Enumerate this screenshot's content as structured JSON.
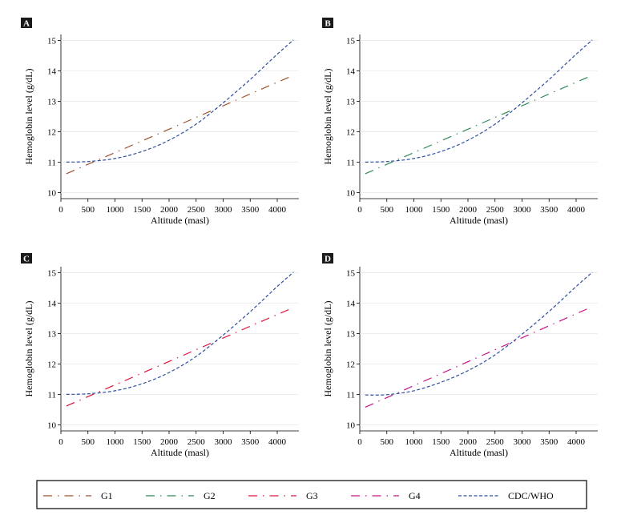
{
  "chart_data": [
    {
      "type": "line",
      "panel_label": "A",
      "xlabel": "Altitude (masl)",
      "ylabel": "Hemoglobin level (g/dL)",
      "xlim": [
        0,
        4400
      ],
      "ylim": [
        9.8,
        15.2
      ],
      "xticks": [
        0,
        500,
        1000,
        1500,
        2000,
        2500,
        3000,
        3500,
        4000
      ],
      "yticks": [
        10,
        11,
        12,
        13,
        14,
        15
      ],
      "series": [
        {
          "name": "G1",
          "color": "#a0522d",
          "style": "long-dash-dot",
          "x": [
            100,
            4250
          ],
          "y": [
            10.62,
            13.82
          ]
        },
        {
          "name": "CDC/WHO",
          "color": "#2f4f9f",
          "style": "short-dash",
          "x": [
            100,
            500,
            1000,
            1500,
            2000,
            2500,
            3000,
            3500,
            4000,
            4300
          ],
          "y": [
            11.0,
            11.02,
            11.12,
            11.35,
            11.72,
            12.25,
            12.95,
            13.72,
            14.55,
            15.02
          ]
        }
      ]
    },
    {
      "type": "line",
      "panel_label": "B",
      "xlabel": "Altitude (masl)",
      "ylabel": "Hemoglobin level (g/dL)",
      "xlim": [
        0,
        4400
      ],
      "ylim": [
        9.8,
        15.2
      ],
      "xticks": [
        0,
        500,
        1000,
        1500,
        2000,
        2500,
        3000,
        3500,
        4000
      ],
      "yticks": [
        10,
        11,
        12,
        13,
        14,
        15
      ],
      "series": [
        {
          "name": "G2",
          "color": "#2e8b57",
          "style": "long-dash-dot",
          "x": [
            100,
            4250
          ],
          "y": [
            10.62,
            13.82
          ]
        },
        {
          "name": "CDC/WHO",
          "color": "#2f4f9f",
          "style": "short-dash",
          "x": [
            100,
            500,
            1000,
            1500,
            2000,
            2500,
            3000,
            3500,
            4000,
            4300
          ],
          "y": [
            11.0,
            11.02,
            11.12,
            11.35,
            11.72,
            12.25,
            12.95,
            13.72,
            14.55,
            15.02
          ]
        }
      ]
    },
    {
      "type": "line",
      "panel_label": "C",
      "xlabel": "Altitude (masl)",
      "ylabel": "Hemoglobin level (g/dL)",
      "xlim": [
        0,
        4400
      ],
      "ylim": [
        9.8,
        15.2
      ],
      "xticks": [
        0,
        500,
        1000,
        1500,
        2000,
        2500,
        3000,
        3500,
        4000
      ],
      "yticks": [
        10,
        11,
        12,
        13,
        14,
        15
      ],
      "series": [
        {
          "name": "G3",
          "color": "#dc143c",
          "style": "long-dash-dot",
          "x": [
            100,
            4250
          ],
          "y": [
            10.62,
            13.82
          ]
        },
        {
          "name": "CDC/WHO",
          "color": "#2f4f9f",
          "style": "short-dash",
          "x": [
            100,
            500,
            1000,
            1500,
            2000,
            2500,
            3000,
            3500,
            4000,
            4300
          ],
          "y": [
            11.0,
            11.02,
            11.12,
            11.35,
            11.72,
            12.25,
            12.95,
            13.72,
            14.55,
            15.02
          ]
        }
      ]
    },
    {
      "type": "line",
      "panel_label": "D",
      "xlabel": "Altitude (masl)",
      "ylabel": "Hemoglobin level (g/dL)",
      "xlim": [
        0,
        4400
      ],
      "ylim": [
        9.8,
        15.2
      ],
      "xticks": [
        0,
        500,
        1000,
        1500,
        2000,
        2500,
        3000,
        3500,
        4000
      ],
      "yticks": [
        10,
        11,
        12,
        13,
        14,
        15
      ],
      "series": [
        {
          "name": "G4",
          "color": "#c71585",
          "style": "long-dash-dot",
          "x": [
            100,
            4250
          ],
          "y": [
            10.58,
            13.85
          ]
        },
        {
          "name": "CDC/WHO",
          "color": "#2f4f9f",
          "style": "short-dash",
          "x": [
            100,
            500,
            1000,
            1500,
            2000,
            2500,
            3000,
            3500,
            4000,
            4300
          ],
          "y": [
            10.98,
            10.99,
            11.12,
            11.4,
            11.78,
            12.3,
            12.98,
            13.73,
            14.55,
            15.02
          ]
        }
      ]
    }
  ],
  "legend": {
    "placement": "bottom",
    "items": [
      {
        "label": "G1",
        "color": "#a0522d",
        "style": "long-dash-dot"
      },
      {
        "label": "G2",
        "color": "#2e8b57",
        "style": "long-dash-dot"
      },
      {
        "label": "G3",
        "color": "#dc143c",
        "style": "long-dash-dot"
      },
      {
        "label": "G4",
        "color": "#c71585",
        "style": "long-dash-dot"
      },
      {
        "label": "CDC/WHO",
        "color": "#2f4f9f",
        "style": "short-dash"
      }
    ]
  }
}
